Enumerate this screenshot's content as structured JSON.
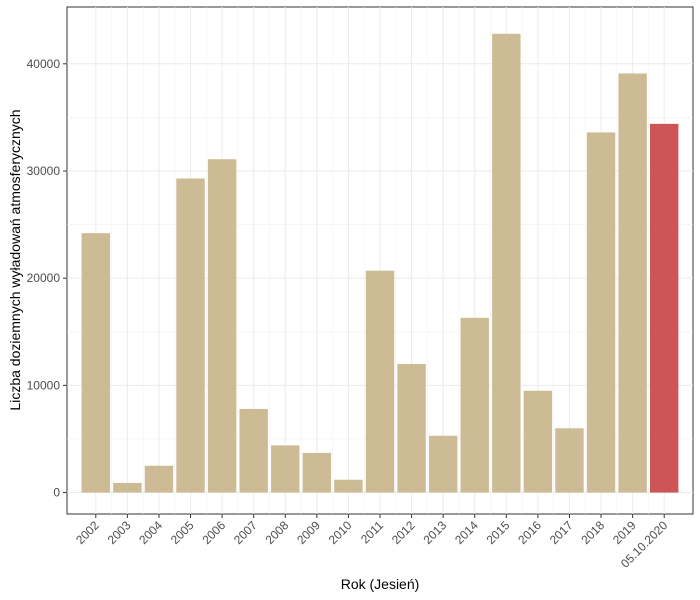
{
  "chart_data": {
    "type": "bar",
    "xlabel": "Rok (Jesień)",
    "ylabel": "Liczba doziemnych wyładowań atmosferycznych",
    "categories": [
      "2002",
      "2003",
      "2004",
      "2005",
      "2006",
      "2007",
      "2008",
      "2009",
      "2010",
      "2011",
      "2012",
      "2013",
      "2014",
      "2015",
      "2016",
      "2017",
      "2018",
      "2019",
      "05.10.2020"
    ],
    "values": [
      24200,
      900,
      2500,
      29300,
      31100,
      7800,
      4400,
      3700,
      1200,
      20700,
      12000,
      5300,
      16300,
      42800,
      9500,
      6000,
      33600,
      39100,
      34400
    ],
    "ylim": [
      -2000,
      45300
    ],
    "yticks": [
      0,
      10000,
      20000,
      30000,
      40000
    ],
    "grid": true,
    "colors": {
      "default": "#cdbb96",
      "highlight": "#cd5555"
    },
    "highlight_index": 18
  }
}
